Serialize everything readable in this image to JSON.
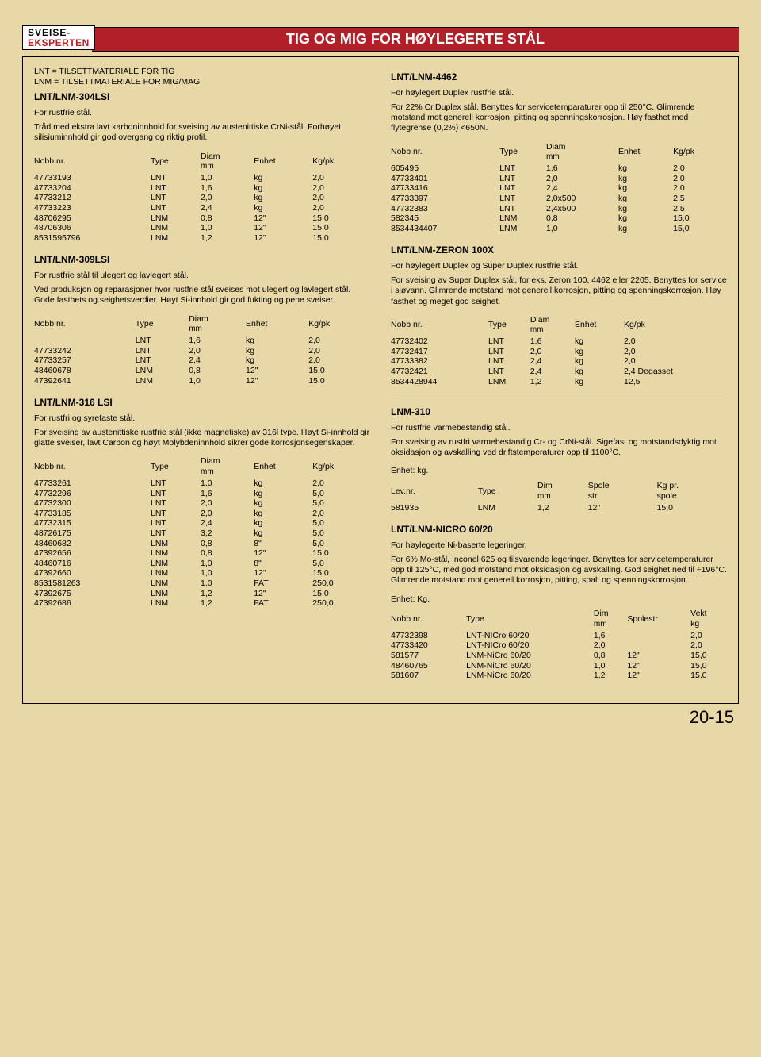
{
  "header": {
    "logo_top": "SVEISE-",
    "logo_bot": "EKSPERTEN",
    "title": "TIG OG MIG FOR HØYLEGERTE STÅL"
  },
  "page_number": "20-15",
  "col_headers": {
    "nobb": "Nobb nr.",
    "type": "Type",
    "diam": "Diam",
    "diam_sub": "mm",
    "dim": "Dim",
    "dim_sub": "mm",
    "enhet": "Enhet",
    "kgpk": "Kg/pk",
    "spole": "Spole\nstr",
    "spolestr": "Spolestr",
    "kgpr": "Kg pr.\nspole",
    "vekt": "Vekt\nkg",
    "levnr": "Lev.nr."
  },
  "left": {
    "intro1": "LNT  =  TILSETTMATERIALE FOR TIG",
    "intro2": "LNM  =  TILSETTMATERIALE FOR MIG/MAG",
    "s304": {
      "title": "LNT/LNM-304LSI",
      "sub": "For rustfrie stål.",
      "desc": "Tråd med ekstra lavt karboninnhold for sveising av austenittiske CrNi-stål. Forhøyet silisiuminnhold gir god overgang og riktig profil.",
      "rows": [
        [
          "47733193",
          "LNT",
          "1,0",
          "kg",
          "2,0"
        ],
        [
          "47733204",
          "LNT",
          "1,6",
          "kg",
          "2,0"
        ],
        [
          "47733212",
          "LNT",
          "2,0",
          "kg",
          "2,0"
        ],
        [
          "47733223",
          "LNT",
          "2,4",
          "kg",
          "2,0"
        ],
        [
          "48706295",
          "LNM",
          "0,8",
          "12\"",
          "15,0"
        ],
        [
          "48706306",
          "LNM",
          "1,0",
          "12\"",
          "15,0"
        ],
        [
          "8531595796",
          "LNM",
          "1,2",
          "12\"",
          "15,0"
        ]
      ]
    },
    "s309": {
      "title": "LNT/LNM-309LSI",
      "sub": "For rustfrie stål til ulegert og lavlegert stål.",
      "desc": "Ved produksjon og reparasjoner hvor rustfrie stål sveises mot ulegert og lavlegert stål. Gode fasthets og seighetsverdier. Høyt Si-innhold gir god fukting og pene sveiser.",
      "rows": [
        [
          "",
          "LNT",
          "1,6",
          "kg",
          "2,0"
        ],
        [
          "47733242",
          "LNT",
          "2,0",
          "kg",
          "2,0"
        ],
        [
          "47733257",
          "LNT",
          "2,4",
          "kg",
          "2,0"
        ],
        [
          "48460678",
          "LNM",
          "0,8",
          "12\"",
          "15,0"
        ],
        [
          "47392641",
          "LNM",
          "1,0",
          "12\"",
          "15,0"
        ]
      ]
    },
    "s316": {
      "title": "LNT/LNM-316 LSI",
      "sub": "For rustfri og syrefaste stål.",
      "desc": "For sveising av austenittiske rustfrie stål (ikke magnetiske) av 316l type. Høyt Si-innhold gir glatte sveiser, lavt Carbon og høyt Molybdeninnhold sikrer gode korrosjonsegenskaper.",
      "rows": [
        [
          "47733261",
          "LNT",
          "1,0",
          "kg",
          "2,0"
        ],
        [
          "47732296",
          "LNT",
          "1,6",
          "kg",
          "5,0"
        ],
        [
          "47732300",
          "LNT",
          "2,0",
          "kg",
          "5,0"
        ],
        [
          "47733185",
          "LNT",
          "2,0",
          "kg",
          "2,0"
        ],
        [
          "47732315",
          "LNT",
          "2,4",
          "kg",
          "5,0"
        ],
        [
          "48726175",
          "LNT",
          "3,2",
          "kg",
          "5,0"
        ],
        [
          "48460682",
          "LNM",
          "0,8",
          "8\"",
          "5,0"
        ],
        [
          "47392656",
          "LNM",
          "0,8",
          "12\"",
          "15,0"
        ],
        [
          "48460716",
          "LNM",
          "1,0",
          "8\"",
          "5,0"
        ],
        [
          "47392660",
          "LNM",
          "1,0",
          "12\"",
          "15,0"
        ],
        [
          "8531581263",
          "LNM",
          "1,0",
          "FAT",
          "250,0"
        ],
        [
          "47392675",
          "LNM",
          "1,2",
          "12\"",
          "15,0"
        ],
        [
          "47392686",
          "LNM",
          "1,2",
          "FAT",
          "250,0"
        ]
      ]
    }
  },
  "right": {
    "s4462": {
      "title": "LNT/LNM-4462",
      "sub": "For høylegert Duplex rustfrie stål.",
      "desc": "For 22% Cr.Duplex stål. Benyttes for servicetemparaturer opp til 250°C. Glimrende motstand mot generell korrosjon, pitting og spenningskorrosjon. Høy fasthet med flytegrense (0,2%) <650N.",
      "rows": [
        [
          "605495",
          "LNT",
          "1,6",
          "kg",
          "2,0"
        ],
        [
          "47733401",
          "LNT",
          "2,0",
          "kg",
          "2,0"
        ],
        [
          "47733416",
          "LNT",
          "2,4",
          "kg",
          "2,0"
        ],
        [
          "47733397",
          "LNT",
          "2,0x500",
          "kg",
          "2,5"
        ],
        [
          "47732383",
          "LNT",
          "2,4x500",
          "kg",
          "2,5"
        ],
        [
          "582345",
          "LNM",
          "0,8",
          "kg",
          "15,0"
        ],
        [
          "8534434407",
          "LNM",
          "1,0",
          "kg",
          "15,0"
        ]
      ]
    },
    "szeron": {
      "title": "LNT/LNM-ZERON 100X",
      "sub": "For høylegert Duplex og Super Duplex rustfrie stål.",
      "desc": "For sveising av Super Duplex stål, for eks. Zeron 100, 4462 eller 2205. Benyttes for service i sjøvann. Glimrende motstand mot generell korrosjon, pitting og spenningskorrosjon. Høy fasthet og meget god seighet.",
      "rows": [
        [
          "47732402",
          "LNT",
          "1,6",
          "kg",
          "2,0"
        ],
        [
          "47732417",
          "LNT",
          "2,0",
          "kg",
          "2,0"
        ],
        [
          "47733382",
          "LNT",
          "2,4",
          "kg",
          "2,0"
        ],
        [
          "47732421",
          "LNT",
          "2,4",
          "kg",
          "2,4 Degasset"
        ],
        [
          "8534428944",
          "LNM",
          "1,2",
          "kg",
          "12,5"
        ]
      ]
    },
    "s310": {
      "title": "LNM-310",
      "sub": "For rustfrie varmebestandig stål.",
      "desc": "For sveising av rustfri varmebestandig Cr- og CrNi-stål. Sigefast og motstandsdyktig mot oksidasjon og avskalling ved driftstemperaturer opp til 1100°C.",
      "enhet": "Enhet: kg.",
      "rows": [
        [
          "581935",
          "LNM",
          "1,2",
          "12\"",
          "15,0"
        ]
      ]
    },
    "snicro": {
      "title": "LNT/LNM-NICRO 60/20",
      "sub": "For høylegerte Ni-baserte legeringer.",
      "desc": "For 6% Mo-stål, Inconel 625 og tilsvarende legeringer. Benyttes for servicetemperaturer opp til 125°C, med god motstand mot oksidasjon og avskalling. God seighet ned til ÷196°C. Glimrende motstand mot generell korrosjon, pitting, spalt og spenningskorrosjon.",
      "enhet": "Enhet: Kg.",
      "rows": [
        [
          "47732398",
          "LNT-NICro 60/20",
          "1,6",
          "",
          "2,0"
        ],
        [
          "47733420",
          "LNT-NICro 60/20",
          "2,0",
          "",
          "2,0"
        ],
        [
          "581577",
          "LNM-NiCro 60/20",
          "0,8",
          "12\"",
          "15,0"
        ],
        [
          "48460765",
          "LNM-NiCro 60/20",
          "1,0",
          "12\"",
          "15,0"
        ],
        [
          "581607",
          "LNM-NiCro 60/20",
          "1,2",
          "12\"",
          "15,0"
        ]
      ]
    }
  }
}
